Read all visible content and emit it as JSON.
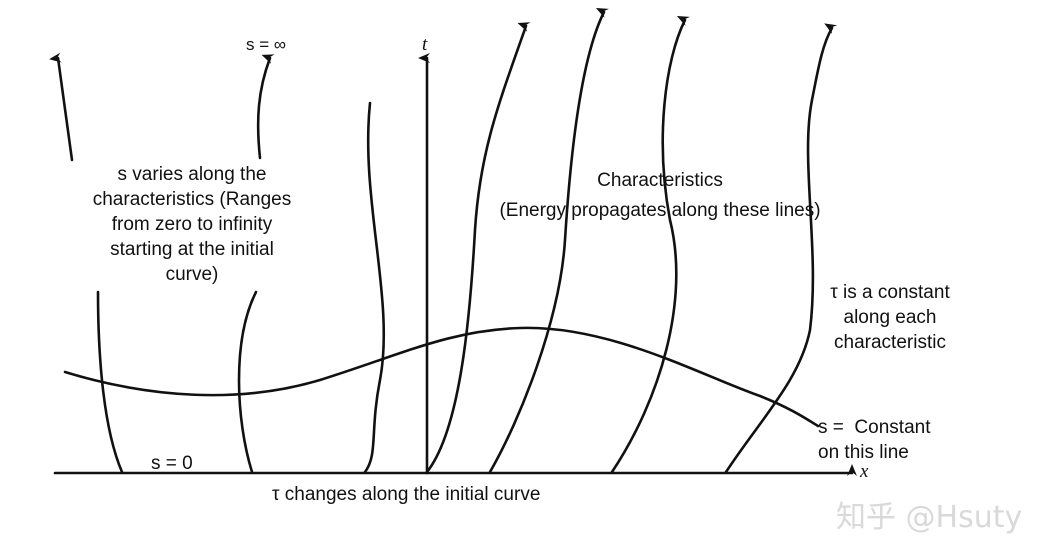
{
  "diagram": {
    "axes": {
      "horizontal_label": "x",
      "vertical_label": "t"
    },
    "labels": {
      "s_infinity": "s = ∞",
      "s_zero": "s = 0",
      "s_varies": "s varies along the\ncharacteristics (Ranges\nfrom zero to infinity\nstarting at the initial\ncurve)",
      "characteristics_title": "Characteristics",
      "characteristics_note": "(Energy propagates along these lines)",
      "tau_constant": "τ is a constant\nalong each\ncharacteristic",
      "s_constant": "s =  Constant\non this line",
      "tau_changes": "τ changes along the initial curve"
    }
  },
  "watermark": {
    "text": "知乎 @Hsuty"
  }
}
